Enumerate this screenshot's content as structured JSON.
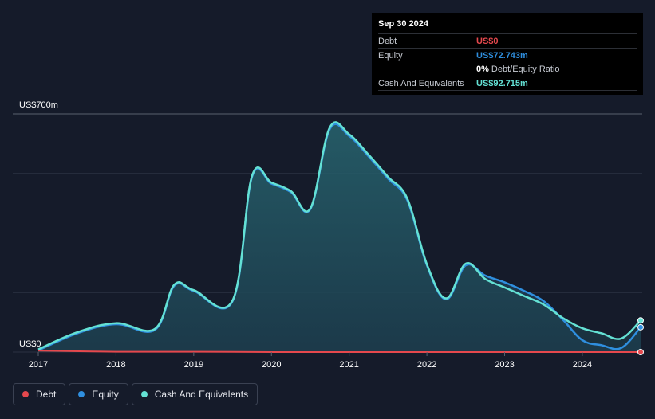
{
  "tooltip": {
    "date": "Sep 30 2024",
    "rows": [
      {
        "label": "Debt",
        "value": "US$0",
        "color": "#e5484d"
      },
      {
        "label": "Equity",
        "value": "US$72.743m",
        "color": "#2f8fdf"
      },
      {
        "ratio_pct": "0%",
        "ratio_text": "Debt/Equity Ratio"
      },
      {
        "label": "Cash And Equivalents",
        "value": "US$92.715m",
        "color": "#64e1d4"
      }
    ]
  },
  "legend": [
    {
      "label": "Debt",
      "color": "#e5484d"
    },
    {
      "label": "Equity",
      "color": "#2f8fdf"
    },
    {
      "label": "Cash And Equivalents",
      "color": "#64e1d4"
    }
  ],
  "chart_data": {
    "type": "area",
    "ylabel_top": "US$700m",
    "ylabel_bottom": "US$0",
    "ylim": [
      0,
      700
    ],
    "x_ticks": [
      "2017",
      "2018",
      "2019",
      "2020",
      "2021",
      "2022",
      "2023",
      "2024"
    ],
    "xlim": [
      2017.0,
      2024.75
    ],
    "grid": true,
    "series": [
      {
        "name": "Debt",
        "color": "#e5484d",
        "x": [
          2017.0,
          2018.0,
          2019.0,
          2020.0,
          2021.0,
          2022.0,
          2023.0,
          2024.0,
          2024.75
        ],
        "y": [
          4,
          1,
          1,
          0,
          0,
          0,
          0,
          0,
          0
        ]
      },
      {
        "name": "Equity",
        "color": "#2f8fdf",
        "x": [
          2017.0,
          2017.5,
          2018.0,
          2018.5,
          2018.75,
          2019.0,
          2019.5,
          2019.75,
          2020.0,
          2020.25,
          2020.5,
          2020.75,
          2021.0,
          2021.25,
          2021.5,
          2021.75,
          2022.0,
          2022.25,
          2022.5,
          2022.75,
          2023.0,
          2023.25,
          2023.5,
          2023.75,
          2024.0,
          2024.25,
          2024.5,
          2024.75
        ],
        "y": [
          5,
          55,
          82,
          65,
          195,
          180,
          150,
          515,
          495,
          470,
          420,
          655,
          635,
          575,
          510,
          445,
          255,
          155,
          255,
          225,
          205,
          180,
          150,
          95,
          35,
          20,
          12,
          73
        ]
      },
      {
        "name": "Cash And Equivalents",
        "color": "#64e1d4",
        "x": [
          2017.0,
          2017.5,
          2018.0,
          2018.5,
          2018.75,
          2019.0,
          2019.5,
          2019.75,
          2020.0,
          2020.25,
          2020.5,
          2020.75,
          2021.0,
          2021.25,
          2021.5,
          2021.75,
          2022.0,
          2022.25,
          2022.5,
          2022.75,
          2023.0,
          2023.25,
          2023.5,
          2023.75,
          2024.0,
          2024.25,
          2024.5,
          2024.75
        ],
        "y": [
          8,
          58,
          85,
          68,
          198,
          182,
          152,
          518,
          498,
          473,
          422,
          660,
          640,
          580,
          515,
          450,
          258,
          158,
          260,
          215,
          190,
          165,
          140,
          100,
          70,
          55,
          40,
          93
        ]
      }
    ]
  }
}
